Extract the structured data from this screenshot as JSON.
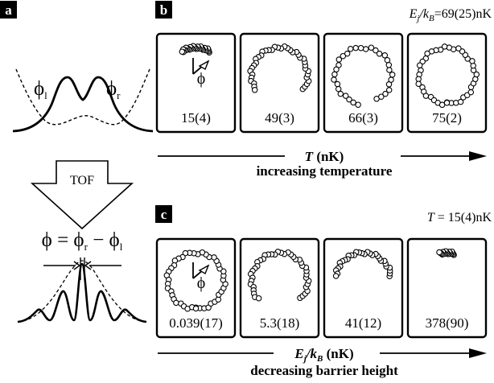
{
  "panel_a": {
    "badge": "a",
    "phi_l": "ϕ",
    "phi_l_sub": "l",
    "phi_r": "ϕ",
    "phi_r_sub": "r",
    "tof": "TOF",
    "eq": "ϕ = ϕ",
    "eq_r_sub": "r",
    "eq_mid": " − ϕ",
    "eq_l_sub": "l"
  },
  "panel_b": {
    "badge": "b",
    "corner_main": "E",
    "corner_sub_j": "j",
    "corner_slash": "/k",
    "corner_sub_b": "B",
    "corner_value": "=69(25)nK",
    "phi_marker": "ϕ",
    "frames": [
      {
        "label": "15(4)",
        "arc_start_deg": 60,
        "arc_end_deg": 120,
        "n_points": 30
      },
      {
        "label": "49(3)",
        "arc_start_deg": -30,
        "arc_end_deg": 210,
        "n_points": 38
      },
      {
        "label": "66(3)",
        "arc_start_deg": -60,
        "arc_end_deg": 260,
        "n_points": 32
      },
      {
        "label": "75(2)",
        "arc_start_deg": -90,
        "arc_end_deg": 270,
        "n_points": 40
      }
    ],
    "axis_italic": "T",
    "axis_unit": " (nK)",
    "caption": "increasing temperature"
  },
  "panel_c": {
    "badge": "c",
    "corner_italic": "T",
    "corner_value": " = 15(4)nK",
    "phi_marker": "ϕ",
    "frames": [
      {
        "label": "0.039(17)",
        "arc_start_deg": -90,
        "arc_end_deg": 270,
        "n_points": 44
      },
      {
        "label": "5.3(18)",
        "arc_start_deg": -40,
        "arc_end_deg": 220,
        "n_points": 40
      },
      {
        "label": "41(12)",
        "arc_start_deg": 10,
        "arc_end_deg": 170,
        "n_points": 30
      },
      {
        "label": "378(90)",
        "arc_start_deg": 75,
        "arc_end_deg": 105,
        "n_points": 18
      }
    ],
    "axis_main": "E",
    "axis_sub_j": "j",
    "axis_slash": "/k",
    "axis_sub_b": "B",
    "axis_unit": " (nK)",
    "caption": "decreasing barrier height"
  }
}
